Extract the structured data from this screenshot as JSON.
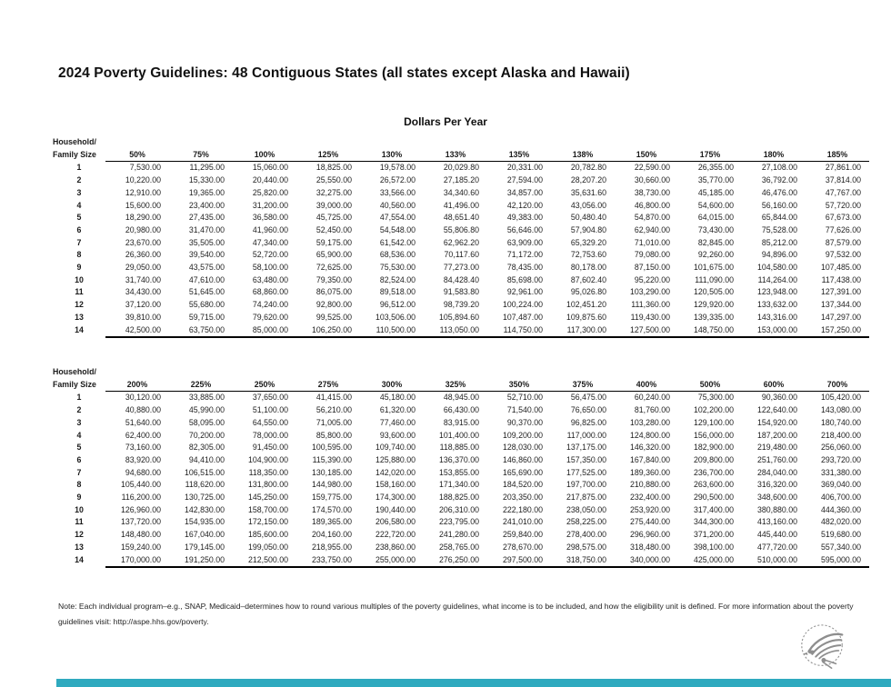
{
  "page": {
    "title": "2024 Poverty Guidelines: 48 Contiguous States (all states except Alaska and Hawaii)",
    "subtitle": "Dollars Per Year",
    "note": "Note: Each individual program–e.g., SNAP, Medicaid–determines how to round various multiples of the poverty guidelines, what income is to be included, and how the eligibility unit is defined.  For more information about the poverty guidelines visit: http://aspe.hhs.gov/poverty.",
    "logo": "hhs-eagle-logo",
    "logo_color": "#8e8e8e",
    "footer_bar_color": "#2FAABF",
    "text_color": "#1a1a1a"
  },
  "tables": [
    {
      "row_header_line1": "Household/",
      "row_header_line2": "Family Size",
      "columns": [
        "50%",
        "75%",
        "100%",
        "125%",
        "130%",
        "133%",
        "135%",
        "138%",
        "150%",
        "175%",
        "180%",
        "185%"
      ],
      "rows": [
        {
          "size": "1",
          "values": [
            "7,530.00",
            "11,295.00",
            "15,060.00",
            "18,825.00",
            "19,578.00",
            "20,029.80",
            "20,331.00",
            "20,782.80",
            "22,590.00",
            "26,355.00",
            "27,108.00",
            "27,861.00"
          ]
        },
        {
          "size": "2",
          "values": [
            "10,220.00",
            "15,330.00",
            "20,440.00",
            "25,550.00",
            "26,572.00",
            "27,185.20",
            "27,594.00",
            "28,207.20",
            "30,660.00",
            "35,770.00",
            "36,792.00",
            "37,814.00"
          ]
        },
        {
          "size": "3",
          "values": [
            "12,910.00",
            "19,365.00",
            "25,820.00",
            "32,275.00",
            "33,566.00",
            "34,340.60",
            "34,857.00",
            "35,631.60",
            "38,730.00",
            "45,185.00",
            "46,476.00",
            "47,767.00"
          ]
        },
        {
          "size": "4",
          "values": [
            "15,600.00",
            "23,400.00",
            "31,200.00",
            "39,000.00",
            "40,560.00",
            "41,496.00",
            "42,120.00",
            "43,056.00",
            "46,800.00",
            "54,600.00",
            "56,160.00",
            "57,720.00"
          ]
        },
        {
          "size": "5",
          "values": [
            "18,290.00",
            "27,435.00",
            "36,580.00",
            "45,725.00",
            "47,554.00",
            "48,651.40",
            "49,383.00",
            "50,480.40",
            "54,870.00",
            "64,015.00",
            "65,844.00",
            "67,673.00"
          ]
        },
        {
          "size": "6",
          "values": [
            "20,980.00",
            "31,470.00",
            "41,960.00",
            "52,450.00",
            "54,548.00",
            "55,806.80",
            "56,646.00",
            "57,904.80",
            "62,940.00",
            "73,430.00",
            "75,528.00",
            "77,626.00"
          ]
        },
        {
          "size": "7",
          "values": [
            "23,670.00",
            "35,505.00",
            "47,340.00",
            "59,175.00",
            "61,542.00",
            "62,962.20",
            "63,909.00",
            "65,329.20",
            "71,010.00",
            "82,845.00",
            "85,212.00",
            "87,579.00"
          ]
        },
        {
          "size": "8",
          "values": [
            "26,360.00",
            "39,540.00",
            "52,720.00",
            "65,900.00",
            "68,536.00",
            "70,117.60",
            "71,172.00",
            "72,753.60",
            "79,080.00",
            "92,260.00",
            "94,896.00",
            "97,532.00"
          ]
        },
        {
          "size": "9",
          "values": [
            "29,050.00",
            "43,575.00",
            "58,100.00",
            "72,625.00",
            "75,530.00",
            "77,273.00",
            "78,435.00",
            "80,178.00",
            "87,150.00",
            "101,675.00",
            "104,580.00",
            "107,485.00"
          ]
        },
        {
          "size": "10",
          "values": [
            "31,740.00",
            "47,610.00",
            "63,480.00",
            "79,350.00",
            "82,524.00",
            "84,428.40",
            "85,698.00",
            "87,602.40",
            "95,220.00",
            "111,090.00",
            "114,264.00",
            "117,438.00"
          ]
        },
        {
          "size": "11",
          "values": [
            "34,430.00",
            "51,645.00",
            "68,860.00",
            "86,075.00",
            "89,518.00",
            "91,583.80",
            "92,961.00",
            "95,026.80",
            "103,290.00",
            "120,505.00",
            "123,948.00",
            "127,391.00"
          ]
        },
        {
          "size": "12",
          "values": [
            "37,120.00",
            "55,680.00",
            "74,240.00",
            "92,800.00",
            "96,512.00",
            "98,739.20",
            "100,224.00",
            "102,451.20",
            "111,360.00",
            "129,920.00",
            "133,632.00",
            "137,344.00"
          ]
        },
        {
          "size": "13",
          "values": [
            "39,810.00",
            "59,715.00",
            "79,620.00",
            "99,525.00",
            "103,506.00",
            "105,894.60",
            "107,487.00",
            "109,875.60",
            "119,430.00",
            "139,335.00",
            "143,316.00",
            "147,297.00"
          ]
        },
        {
          "size": "14",
          "values": [
            "42,500.00",
            "63,750.00",
            "85,000.00",
            "106,250.00",
            "110,500.00",
            "113,050.00",
            "114,750.00",
            "117,300.00",
            "127,500.00",
            "148,750.00",
            "153,000.00",
            "157,250.00"
          ]
        }
      ]
    },
    {
      "row_header_line1": "Household/",
      "row_header_line2": "Family Size",
      "columns": [
        "200%",
        "225%",
        "250%",
        "275%",
        "300%",
        "325%",
        "350%",
        "375%",
        "400%",
        "500%",
        "600%",
        "700%"
      ],
      "rows": [
        {
          "size": "1",
          "values": [
            "30,120.00",
            "33,885.00",
            "37,650.00",
            "41,415.00",
            "45,180.00",
            "48,945.00",
            "52,710.00",
            "56,475.00",
            "60,240.00",
            "75,300.00",
            "90,360.00",
            "105,420.00"
          ]
        },
        {
          "size": "2",
          "values": [
            "40,880.00",
            "45,990.00",
            "51,100.00",
            "56,210.00",
            "61,320.00",
            "66,430.00",
            "71,540.00",
            "76,650.00",
            "81,760.00",
            "102,200.00",
            "122,640.00",
            "143,080.00"
          ]
        },
        {
          "size": "3",
          "values": [
            "51,640.00",
            "58,095.00",
            "64,550.00",
            "71,005.00",
            "77,460.00",
            "83,915.00",
            "90,370.00",
            "96,825.00",
            "103,280.00",
            "129,100.00",
            "154,920.00",
            "180,740.00"
          ]
        },
        {
          "size": "4",
          "values": [
            "62,400.00",
            "70,200.00",
            "78,000.00",
            "85,800.00",
            "93,600.00",
            "101,400.00",
            "109,200.00",
            "117,000.00",
            "124,800.00",
            "156,000.00",
            "187,200.00",
            "218,400.00"
          ]
        },
        {
          "size": "5",
          "values": [
            "73,160.00",
            "82,305.00",
            "91,450.00",
            "100,595.00",
            "109,740.00",
            "118,885.00",
            "128,030.00",
            "137,175.00",
            "146,320.00",
            "182,900.00",
            "219,480.00",
            "256,060.00"
          ]
        },
        {
          "size": "6",
          "values": [
            "83,920.00",
            "94,410.00",
            "104,900.00",
            "115,390.00",
            "125,880.00",
            "136,370.00",
            "146,860.00",
            "157,350.00",
            "167,840.00",
            "209,800.00",
            "251,760.00",
            "293,720.00"
          ]
        },
        {
          "size": "7",
          "values": [
            "94,680.00",
            "106,515.00",
            "118,350.00",
            "130,185.00",
            "142,020.00",
            "153,855.00",
            "165,690.00",
            "177,525.00",
            "189,360.00",
            "236,700.00",
            "284,040.00",
            "331,380.00"
          ]
        },
        {
          "size": "8",
          "values": [
            "105,440.00",
            "118,620.00",
            "131,800.00",
            "144,980.00",
            "158,160.00",
            "171,340.00",
            "184,520.00",
            "197,700.00",
            "210,880.00",
            "263,600.00",
            "316,320.00",
            "369,040.00"
          ]
        },
        {
          "size": "9",
          "values": [
            "116,200.00",
            "130,725.00",
            "145,250.00",
            "159,775.00",
            "174,300.00",
            "188,825.00",
            "203,350.00",
            "217,875.00",
            "232,400.00",
            "290,500.00",
            "348,600.00",
            "406,700.00"
          ]
        },
        {
          "size": "10",
          "values": [
            "126,960.00",
            "142,830.00",
            "158,700.00",
            "174,570.00",
            "190,440.00",
            "206,310.00",
            "222,180.00",
            "238,050.00",
            "253,920.00",
            "317,400.00",
            "380,880.00",
            "444,360.00"
          ]
        },
        {
          "size": "11",
          "values": [
            "137,720.00",
            "154,935.00",
            "172,150.00",
            "189,365.00",
            "206,580.00",
            "223,795.00",
            "241,010.00",
            "258,225.00",
            "275,440.00",
            "344,300.00",
            "413,160.00",
            "482,020.00"
          ]
        },
        {
          "size": "12",
          "values": [
            "148,480.00",
            "167,040.00",
            "185,600.00",
            "204,160.00",
            "222,720.00",
            "241,280.00",
            "259,840.00",
            "278,400.00",
            "296,960.00",
            "371,200.00",
            "445,440.00",
            "519,680.00"
          ]
        },
        {
          "size": "13",
          "values": [
            "159,240.00",
            "179,145.00",
            "199,050.00",
            "218,955.00",
            "238,860.00",
            "258,765.00",
            "278,670.00",
            "298,575.00",
            "318,480.00",
            "398,100.00",
            "477,720.00",
            "557,340.00"
          ]
        },
        {
          "size": "14",
          "values": [
            "170,000.00",
            "191,250.00",
            "212,500.00",
            "233,750.00",
            "255,000.00",
            "276,250.00",
            "297,500.00",
            "318,750.00",
            "340,000.00",
            "425,000.00",
            "510,000.00",
            "595,000.00"
          ]
        }
      ]
    }
  ]
}
